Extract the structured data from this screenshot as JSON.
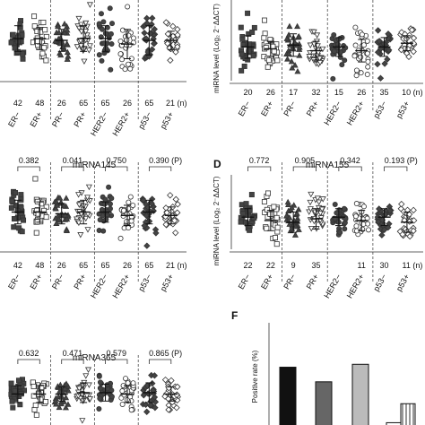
{
  "chart_data": [
    {
      "panel": "",
      "type": "scatter",
      "title": "",
      "ylabel": "",
      "categories": [
        "ER−",
        "ER+",
        "PR−",
        "PR+",
        "HER2−",
        "HER2+",
        "p53−",
        "p53+"
      ],
      "n": [
        "42",
        "48",
        "26",
        "65",
        "65",
        "26",
        "65",
        "21 (n)"
      ],
      "p_values": [],
      "markers": [
        "square-filled",
        "square-open",
        "triangle-filled",
        "triangle-open",
        "circle-filled",
        "circle-open",
        "diamond-filled",
        "diamond-open"
      ],
      "mean": [
        0.0,
        0.0,
        -0.1,
        0.0,
        0.0,
        -0.3,
        -0.1,
        -0.1
      ],
      "sd": [
        0.7,
        0.6,
        0.6,
        0.7,
        0.7,
        0.8,
        0.8,
        0.5
      ]
    },
    {
      "panel": "",
      "type": "scatter",
      "title": "",
      "ylabel": "miRNA level (Log₂ 2⁻ΔΔCT)",
      "categories": [
        "ER−",
        "ER+",
        "PR−",
        "PR+",
        "HER2−",
        "HER2+",
        "p53−",
        "p53+"
      ],
      "n": [
        "20",
        "26",
        "17",
        "32",
        "15",
        "26",
        "35",
        "10 (n)"
      ],
      "p_values": [],
      "markers": [
        "square-filled",
        "square-open",
        "triangle-filled",
        "triangle-open",
        "circle-filled",
        "circle-open",
        "diamond-filled",
        "diamond-open"
      ],
      "mean": [
        -0.4,
        -0.5,
        -0.3,
        -0.6,
        -0.4,
        -0.6,
        -0.4,
        -0.2
      ],
      "sd": [
        0.6,
        0.4,
        0.6,
        0.5,
        0.5,
        0.6,
        0.5,
        0.4
      ]
    },
    {
      "panel": "",
      "type": "scatter",
      "title": "miRNA145",
      "ylabel": "",
      "categories": [
        "ER−",
        "ER+",
        "PR−",
        "PR+",
        "HER2−",
        "HER2+",
        "p53−",
        "p53+"
      ],
      "n": [
        "42",
        "48",
        "26",
        "65",
        "65",
        "26",
        "65",
        "21 (n)"
      ],
      "p_values": [
        "0.382",
        "0.041",
        "0.750",
        "0.390 (P)"
      ],
      "markers": [
        "square-filled",
        "square-open",
        "triangle-filled",
        "triangle-open",
        "circle-filled",
        "circle-open",
        "diamond-filled",
        "diamond-open"
      ],
      "mean": [
        0.0,
        0.0,
        -0.1,
        0.0,
        0.0,
        -0.2,
        0.0,
        -0.2
      ],
      "sd": [
        0.7,
        0.6,
        0.6,
        0.7,
        0.6,
        0.6,
        0.7,
        0.5
      ]
    },
    {
      "panel": "D",
      "type": "scatter",
      "title": "miRNA155",
      "ylabel": "miRNA level (Log₂ 2⁻ΔΔCT)",
      "categories": [
        "ER−",
        "ER+",
        "PR−",
        "PR+",
        "HER2−",
        "HER2+",
        "p53−",
        "p53+"
      ],
      "n": [
        "22",
        "22",
        "9",
        "35",
        "11",
        "30",
        "11 (n)"
      ],
      "n_full": [
        "22",
        "22",
        "9",
        "35",
        "",
        "11",
        "30",
        "11 (n)"
      ],
      "p_values": [
        "0.772",
        "0.905",
        "0.342",
        "0.193 (P)"
      ],
      "markers": [
        "square-filled",
        "square-open",
        "triangle-filled",
        "triangle-open",
        "circle-filled",
        "circle-open",
        "diamond-filled",
        "diamond-open"
      ],
      "mean": [
        -0.3,
        -0.5,
        -0.6,
        -0.4,
        -0.3,
        -0.5,
        -0.3,
        -0.6
      ],
      "sd": [
        0.5,
        0.6,
        0.6,
        0.6,
        0.5,
        0.6,
        0.5,
        0.6
      ]
    },
    {
      "panel": "",
      "type": "scatter",
      "title": "miRNA365",
      "ylabel": "",
      "categories": [
        "ER−",
        "ER+",
        "PR−",
        "PR+",
        "HER2−",
        "HER2+",
        "p53−",
        "p53+"
      ],
      "n": [],
      "p_values": [
        "0.632",
        "0.471",
        "0.579",
        "0.865 (P)"
      ],
      "markers": [
        "square-filled",
        "square-open",
        "triangle-filled",
        "triangle-open",
        "circle-filled",
        "circle-open",
        "diamond-filled",
        "diamond-open"
      ],
      "mean": [
        0.0,
        0.0,
        0.0,
        0.1,
        0.1,
        0.0,
        0.1,
        0.0
      ],
      "sd": [
        0.6,
        0.6,
        0.5,
        0.7,
        0.6,
        0.6,
        0.7,
        0.5
      ]
    },
    {
      "panel": "F",
      "type": "bar",
      "title": "",
      "ylabel": "Positive rate (%)",
      "categories": [
        "",
        "",
        "",
        "",
        ""
      ],
      "values": [
        58,
        48,
        60,
        20,
        33
      ],
      "fills": [
        "#111111",
        "#666666",
        "#bbbbbb",
        "#ffffff",
        "hatched"
      ],
      "ylim": [
        0,
        70
      ]
    }
  ]
}
